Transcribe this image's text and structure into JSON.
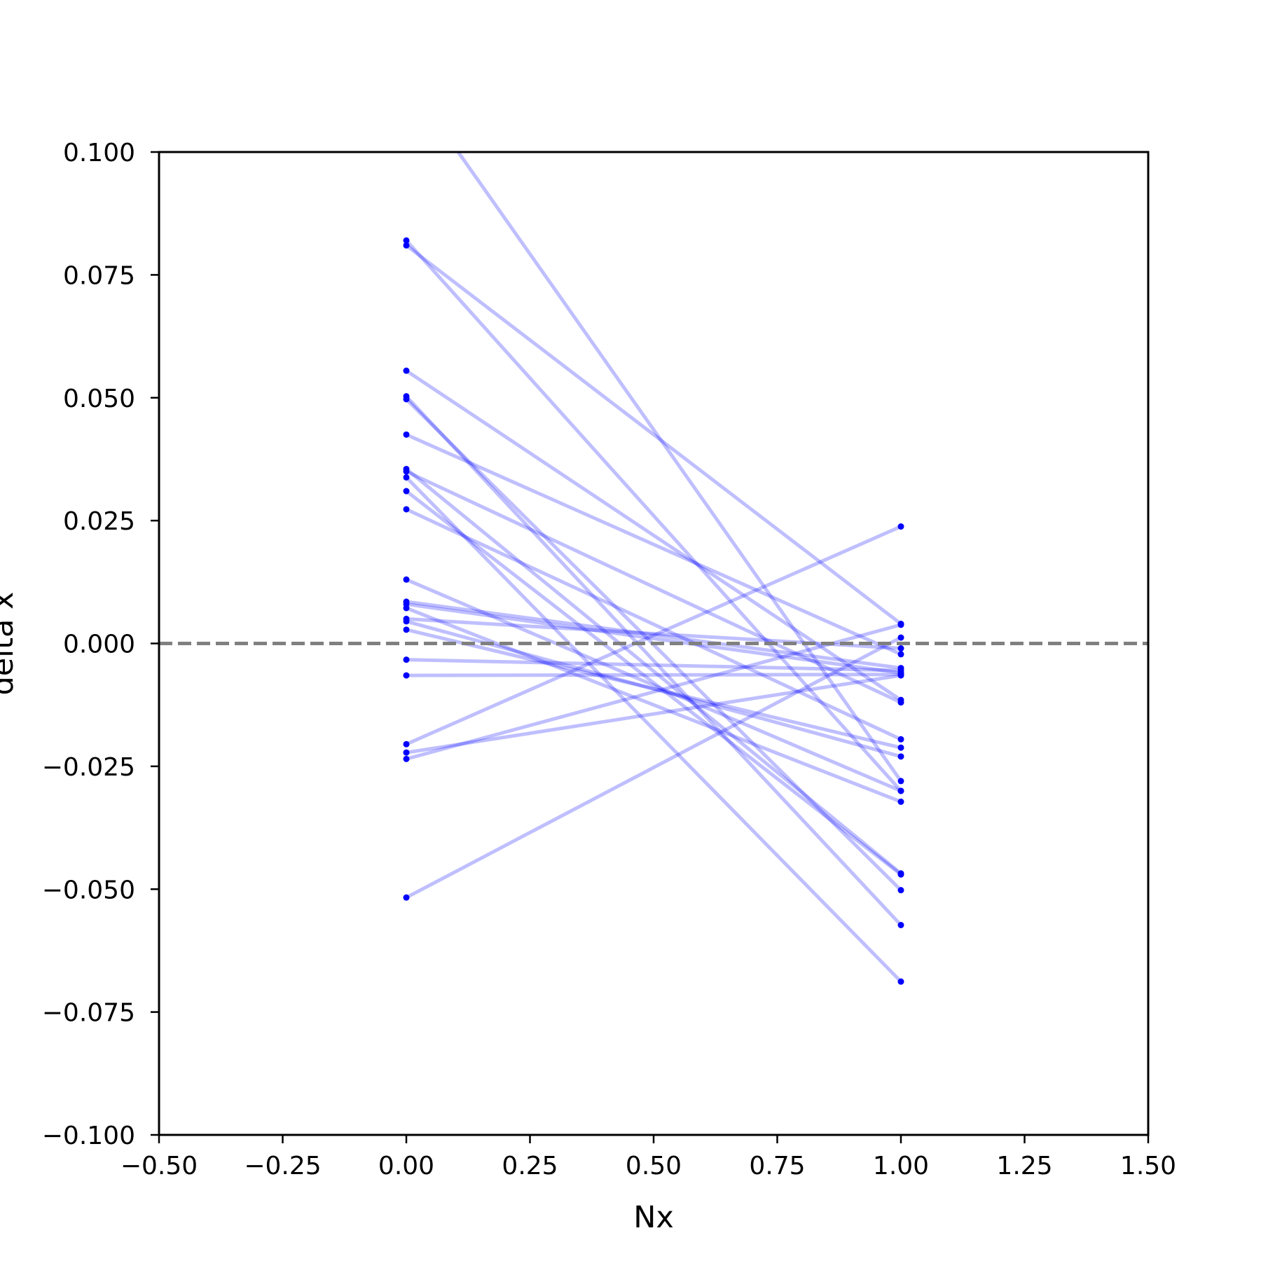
{
  "chart_data": {
    "type": "line",
    "title": "",
    "xlabel": "Nx",
    "ylabel": "delta x",
    "xlim": [
      -0.5,
      1.5
    ],
    "ylim": [
      -0.1,
      0.1
    ],
    "xticks": [
      -0.5,
      -0.25,
      0.0,
      0.25,
      0.5,
      0.75,
      1.0,
      1.25,
      1.5
    ],
    "xtick_labels": [
      "−0.50",
      "−0.25",
      "0.00",
      "0.25",
      "0.50",
      "0.75",
      "1.00",
      "1.25",
      "1.50"
    ],
    "yticks": [
      0.1,
      0.075,
      0.05,
      0.025,
      0.0,
      -0.025,
      -0.05,
      -0.075,
      -0.1
    ],
    "ytick_labels": [
      "0.100",
      "0.075",
      "0.050",
      "0.025",
      "0.000",
      "−0.025",
      "−0.050",
      "−0.075",
      "−0.100"
    ],
    "grid": false,
    "line_color": "#0000ff",
    "line_opacity": 0.25,
    "reference_line": {
      "y": 0.0,
      "style": "dashed",
      "color": "#808080"
    },
    "pairs": [
      {
        "x": [
          0,
          1
        ],
        "y": [
          0.115,
          -0.028
        ]
      },
      {
        "x": [
          0,
          1
        ],
        "y": [
          0.082,
          -0.03
        ]
      },
      {
        "x": [
          0,
          1
        ],
        "y": [
          0.081,
          0.004
        ]
      },
      {
        "x": [
          0,
          1
        ],
        "y": [
          0.0555,
          -0.0115
        ]
      },
      {
        "x": [
          0,
          1
        ],
        "y": [
          0.0503,
          -0.0573
        ]
      },
      {
        "x": [
          0,
          1
        ],
        "y": [
          0.0497,
          -0.0502
        ]
      },
      {
        "x": [
          0,
          1
        ],
        "y": [
          0.0425,
          -0.0022
        ]
      },
      {
        "x": [
          0,
          1
        ],
        "y": [
          0.0355,
          -0.0468
        ]
      },
      {
        "x": [
          0,
          1
        ],
        "y": [
          0.035,
          -0.012
        ]
      },
      {
        "x": [
          0,
          1
        ],
        "y": [
          0.0338,
          -0.0688
        ]
      },
      {
        "x": [
          0,
          1
        ],
        "y": [
          0.031,
          -0.047
        ]
      },
      {
        "x": [
          0,
          1
        ],
        "y": [
          0.0273,
          -0.0195
        ]
      },
      {
        "x": [
          0,
          1
        ],
        "y": [
          0.013,
          -0.03
        ]
      },
      {
        "x": [
          0,
          1
        ],
        "y": [
          0.0085,
          -0.005
        ]
      },
      {
        "x": [
          0,
          1
        ],
        "y": [
          0.008,
          -0.006
        ]
      },
      {
        "x": [
          0,
          1
        ],
        "y": [
          0.0072,
          -0.0322
        ]
      },
      {
        "x": [
          0,
          1
        ],
        "y": [
          0.005,
          -0.001
        ]
      },
      {
        "x": [
          0,
          1
        ],
        "y": [
          0.0045,
          -0.023
        ]
      },
      {
        "x": [
          0,
          1
        ],
        "y": [
          0.0028,
          -0.0212
        ]
      },
      {
        "x": [
          0,
          1
        ],
        "y": [
          -0.0033,
          -0.0055
        ]
      },
      {
        "x": [
          0,
          1
        ],
        "y": [
          -0.0065,
          -0.0063
        ]
      },
      {
        "x": [
          0,
          1
        ],
        "y": [
          -0.0205,
          0.0238
        ]
      },
      {
        "x": [
          0,
          1
        ],
        "y": [
          -0.0222,
          -0.0065
        ]
      },
      {
        "x": [
          0,
          1
        ],
        "y": [
          -0.0235,
          0.0038
        ]
      },
      {
        "x": [
          0,
          1
        ],
        "y": [
          -0.0517,
          0.0012
        ]
      }
    ]
  }
}
